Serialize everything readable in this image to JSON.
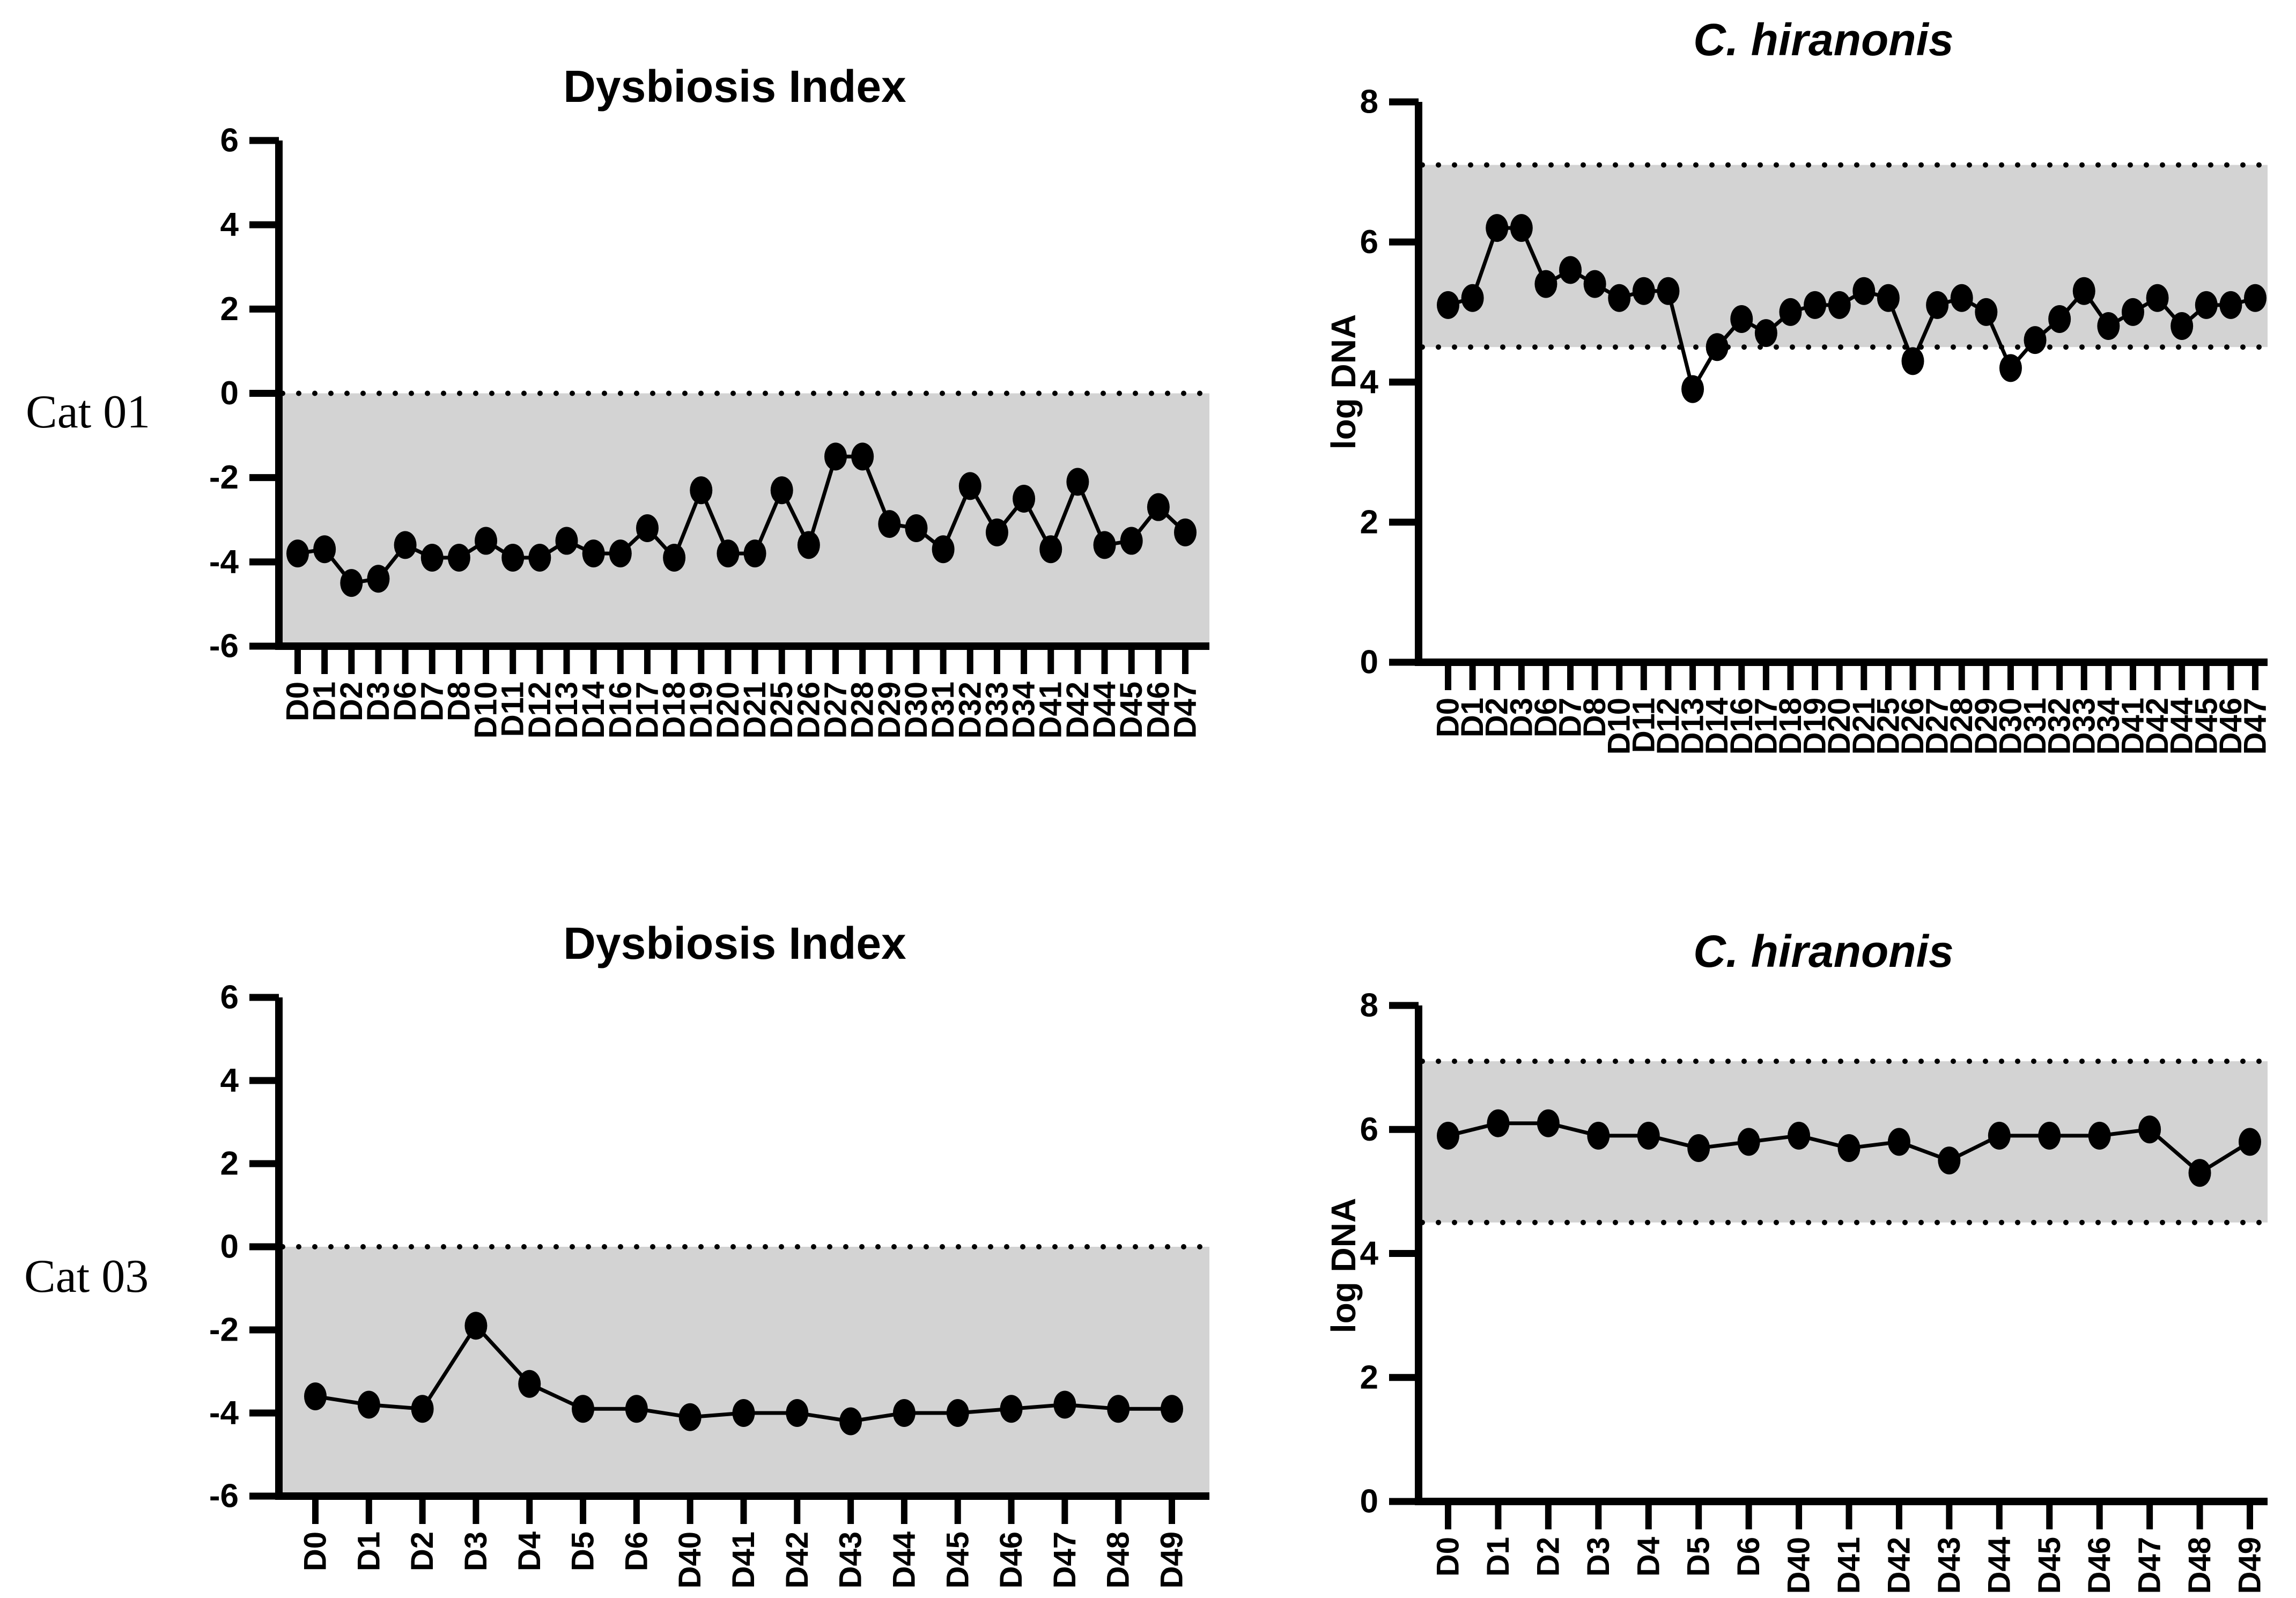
{
  "figure": {
    "rows": [
      {
        "label": "Cat 01"
      },
      {
        "label": "Cat 03"
      }
    ]
  },
  "colors": {
    "marker": "#000000",
    "line": "#000000",
    "axis": "#000000",
    "reference_band": "#d3d3d3",
    "background": "#ffffff"
  },
  "chart_data": [
    {
      "type": "line",
      "row_label": "Cat 01",
      "title": "Dysbiosis Index",
      "title_italic": false,
      "xlabel": "",
      "ylabel": "",
      "ylim": [
        -6,
        6
      ],
      "yticks": [
        6,
        4,
        2,
        0,
        -2,
        -4,
        -6
      ],
      "grid": false,
      "legend": "none",
      "reference_band": {
        "from": -6,
        "to": 0
      },
      "dotted_lines": [
        0
      ],
      "categories": [
        "D0",
        "D1",
        "D2",
        "D3",
        "D6",
        "D7",
        "D8",
        "D10",
        "D11",
        "D12",
        "D13",
        "D14",
        "D16",
        "D17",
        "D18",
        "D19",
        "D20",
        "D21",
        "D25",
        "D26",
        "D27",
        "D28",
        "D29",
        "D30",
        "D31",
        "D32",
        "D33",
        "D34",
        "D41",
        "D42",
        "D44",
        "D45",
        "D46",
        "D47"
      ],
      "values": [
        -3.8,
        -3.7,
        -4.5,
        -4.4,
        -3.6,
        -3.9,
        -3.9,
        -3.5,
        -3.9,
        -3.9,
        -3.5,
        -3.8,
        -3.8,
        -3.2,
        -3.9,
        -2.3,
        -3.8,
        -3.8,
        -2.3,
        -3.6,
        -1.5,
        -1.5,
        -3.1,
        -3.2,
        -3.7,
        -2.2,
        -3.3,
        -2.5,
        -3.7,
        -2.1,
        -3.6,
        -3.5,
        -2.7,
        -3.3
      ]
    },
    {
      "type": "line",
      "row_label": "Cat 01",
      "title": "C. hiranonis",
      "title_italic": true,
      "xlabel": "",
      "ylabel": "log DNA",
      "ylim": [
        0,
        8
      ],
      "yticks": [
        8,
        6,
        4,
        2,
        0
      ],
      "grid": false,
      "legend": "none",
      "reference_band": {
        "from": 4.5,
        "to": 7.1
      },
      "dotted_lines": [
        7.1,
        4.5
      ],
      "categories": [
        "D0",
        "D1",
        "D2",
        "D3",
        "D6",
        "D7",
        "D8",
        "D10",
        "D11",
        "D12",
        "D13",
        "D14",
        "D16",
        "D17",
        "D18",
        "D19",
        "D20",
        "D21",
        "D25",
        "D26",
        "D27",
        "D28",
        "D29",
        "D30",
        "D31",
        "D32",
        "D33",
        "D34",
        "D41",
        "D42",
        "D44",
        "D45",
        "D46",
        "D47"
      ],
      "values": [
        5.1,
        5.2,
        6.2,
        6.2,
        5.4,
        5.6,
        5.4,
        5.2,
        5.3,
        5.3,
        3.9,
        4.5,
        4.9,
        4.7,
        5.0,
        5.1,
        5.1,
        5.3,
        5.2,
        4.3,
        5.1,
        5.2,
        5.0,
        4.2,
        4.6,
        4.9,
        5.3,
        4.8,
        5.0,
        5.2,
        4.8,
        5.1,
        5.1,
        5.2
      ]
    },
    {
      "type": "line",
      "row_label": "Cat 03",
      "title": "Dysbiosis Index",
      "title_italic": false,
      "xlabel": "",
      "ylabel": "",
      "ylim": [
        -6,
        6
      ],
      "yticks": [
        6,
        4,
        2,
        0,
        -2,
        -4,
        -6
      ],
      "grid": false,
      "legend": "none",
      "reference_band": {
        "from": -6,
        "to": 0
      },
      "dotted_lines": [
        0
      ],
      "categories": [
        "D0",
        "D1",
        "D2",
        "D3",
        "D4",
        "D5",
        "D6",
        "D40",
        "D41",
        "D42",
        "D43",
        "D44",
        "D45",
        "D46",
        "D47",
        "D48",
        "D49"
      ],
      "values": [
        -3.6,
        -3.8,
        -3.9,
        -1.9,
        -3.3,
        -3.9,
        -3.9,
        -4.1,
        -4.0,
        -4.0,
        -4.2,
        -4.0,
        -4.0,
        -3.9,
        -3.8,
        -3.9,
        -3.9
      ]
    },
    {
      "type": "line",
      "row_label": "Cat 03",
      "title": "C. hiranonis",
      "title_italic": true,
      "xlabel": "",
      "ylabel": "log DNA",
      "ylim": [
        0,
        8
      ],
      "yticks": [
        8,
        6,
        4,
        2,
        0
      ],
      "grid": false,
      "legend": "none",
      "reference_band": {
        "from": 4.5,
        "to": 7.1
      },
      "dotted_lines": [
        7.1,
        4.5
      ],
      "categories": [
        "D0",
        "D1",
        "D2",
        "D3",
        "D4",
        "D5",
        "D6",
        "D40",
        "D41",
        "D42",
        "D43",
        "D44",
        "D45",
        "D46",
        "D47",
        "D48",
        "D49"
      ],
      "values": [
        5.9,
        6.1,
        6.1,
        5.9,
        5.9,
        5.7,
        5.8,
        5.9,
        5.7,
        5.8,
        5.5,
        5.9,
        5.9,
        5.9,
        6.0,
        5.3,
        5.8
      ]
    }
  ]
}
